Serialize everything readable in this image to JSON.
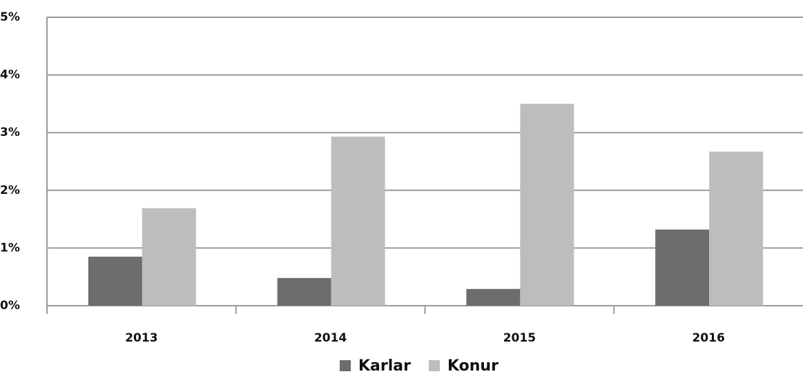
{
  "chart_data": {
    "type": "bar",
    "categories": [
      "2013",
      "2014",
      "2015",
      "2016"
    ],
    "series": [
      {
        "name": "Karlar",
        "color": "#6d6d6d",
        "values": [
          0.85,
          0.48,
          0.29,
          1.32
        ]
      },
      {
        "name": "Konur",
        "color": "#bdbdbd",
        "values": [
          1.69,
          2.93,
          3.5,
          2.67
        ]
      }
    ],
    "ylim": [
      0,
      5
    ],
    "yticks": [
      {
        "value": 0,
        "label": "0%"
      },
      {
        "value": 1,
        "label": "1%"
      },
      {
        "value": 2,
        "label": "2%"
      },
      {
        "value": 3,
        "label": "3%"
      },
      {
        "value": 4,
        "label": "4%"
      },
      {
        "value": 5,
        "label": "5%"
      }
    ],
    "grid": true
  }
}
